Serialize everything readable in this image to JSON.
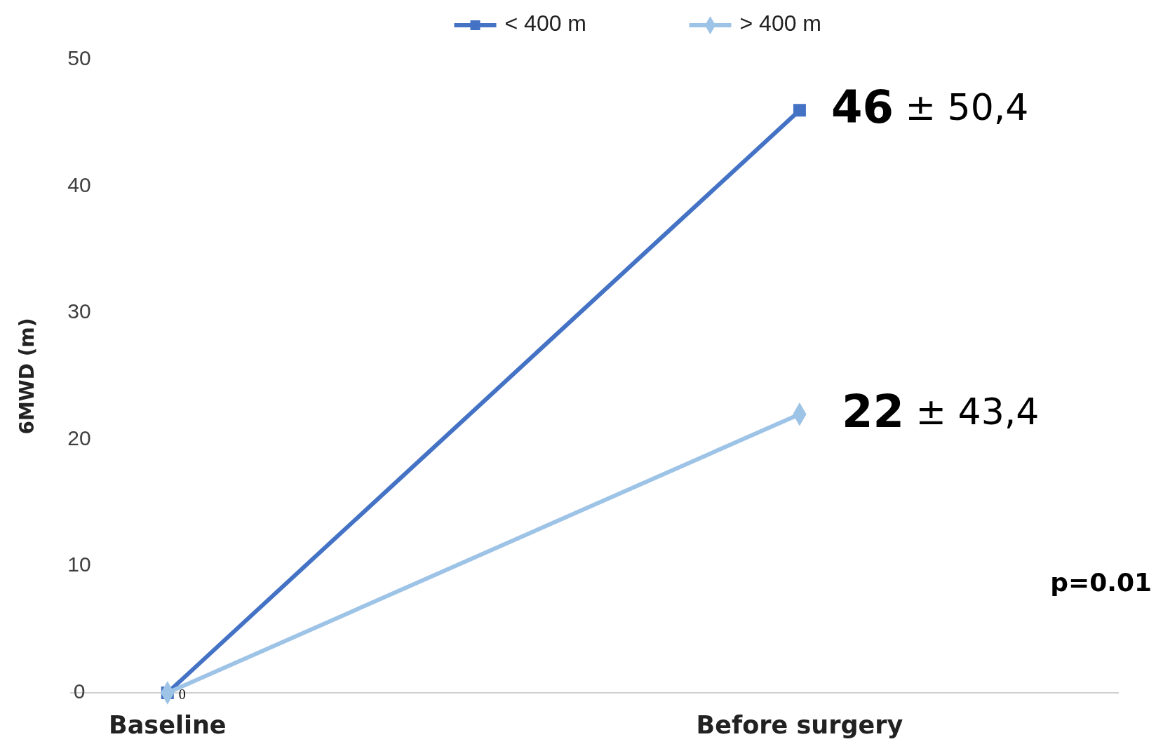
{
  "chart_data": {
    "type": "line",
    "ylabel": "6MWD (m)",
    "categories": [
      "Baseline",
      "Before surgery"
    ],
    "series": [
      {
        "name": "< 400 m",
        "color": "#4472c4",
        "marker": "square",
        "values": [
          0,
          46
        ],
        "value_labels": [
          null,
          "46 ± 50,4"
        ]
      },
      {
        "name": "> 400 m",
        "color": "#9dc3e6",
        "marker": "diamond",
        "values": [
          0,
          22
        ],
        "value_labels": [
          "0",
          "22 ± 43,4"
        ]
      }
    ],
    "ylim": [
      0,
      50
    ],
    "yticks": [
      0,
      10,
      20,
      30,
      40,
      50
    ],
    "grid": false,
    "legend": "top",
    "annotations": [
      "p=0.01"
    ]
  }
}
